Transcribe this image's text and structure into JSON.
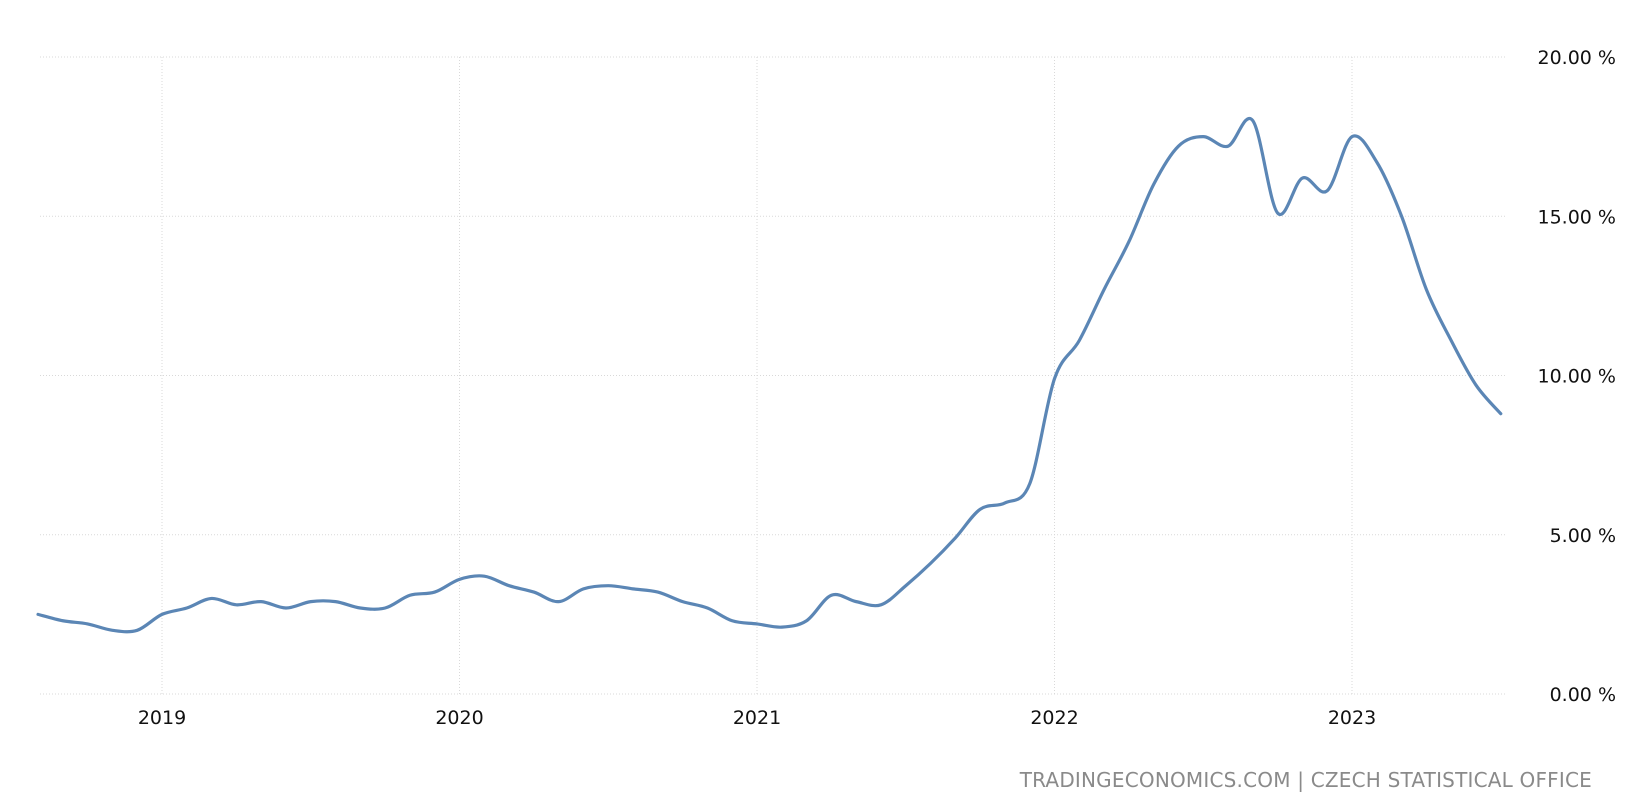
{
  "chart_data": {
    "type": "line",
    "title": "",
    "xlabel": "",
    "ylabel": "",
    "grid": true,
    "line_color": "#5b86b5",
    "x_ticks": [
      "2019",
      "2020",
      "2021",
      "2022",
      "2023"
    ],
    "y_ticks": [
      "0.00 %",
      "5.00 %",
      "10.00 %",
      "15.00 %",
      "20.00 %"
    ],
    "y_tick_values": [
      0,
      5,
      10,
      15,
      20
    ],
    "ylim": [
      0,
      20
    ],
    "xlim": [
      "2018-08",
      "2023-08"
    ],
    "series": [
      {
        "x": [
          "2018-08",
          "2018-09",
          "2018-10",
          "2018-11",
          "2018-12",
          "2019-01",
          "2019-02",
          "2019-03",
          "2019-04",
          "2019-05",
          "2019-06",
          "2019-07",
          "2019-08",
          "2019-09",
          "2019-10",
          "2019-11",
          "2019-12",
          "2020-01",
          "2020-02",
          "2020-03",
          "2020-04",
          "2020-05",
          "2020-06",
          "2020-07",
          "2020-08",
          "2020-09",
          "2020-10",
          "2020-11",
          "2020-12",
          "2021-01",
          "2021-02",
          "2021-03",
          "2021-04",
          "2021-05",
          "2021-06",
          "2021-07",
          "2021-08",
          "2021-09",
          "2021-10",
          "2021-11",
          "2021-12",
          "2022-01",
          "2022-02",
          "2022-03",
          "2022-04",
          "2022-05",
          "2022-06",
          "2022-07",
          "2022-08",
          "2022-09",
          "2022-10",
          "2022-11",
          "2022-12",
          "2023-01",
          "2023-02",
          "2023-03",
          "2023-04",
          "2023-05",
          "2023-06"
        ],
        "values": [
          2.5,
          2.3,
          2.2,
          2.0,
          2.0,
          2.5,
          2.7,
          3.0,
          2.8,
          2.9,
          2.7,
          2.9,
          2.9,
          2.7,
          2.7,
          3.1,
          3.2,
          3.6,
          3.7,
          3.4,
          3.2,
          2.9,
          3.3,
          3.4,
          3.3,
          3.2,
          2.9,
          2.7,
          2.3,
          2.2,
          2.1,
          2.3,
          3.1,
          2.9,
          2.8,
          3.4,
          4.1,
          4.9,
          5.8,
          6.0,
          6.6,
          9.9,
          11.1,
          12.7,
          14.2,
          16.0,
          17.2,
          17.5,
          17.2,
          18.0,
          15.1,
          16.2,
          15.8,
          17.5,
          16.7,
          15.0,
          12.7,
          11.1,
          9.7
        ]
      }
    ],
    "last_point": {
      "x": "2023-07",
      "value": 8.8
    }
  },
  "credit": {
    "text": "TRADINGECONOMICS.COM | CZECH STATISTICAL OFFICE"
  }
}
